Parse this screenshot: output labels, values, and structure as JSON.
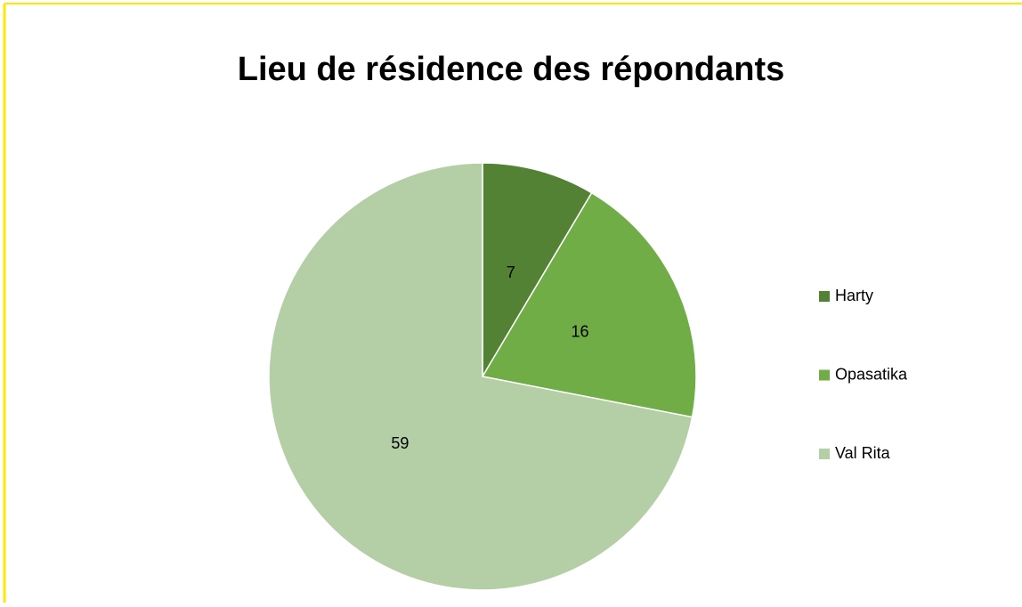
{
  "chart_data": {
    "type": "pie",
    "title": "Lieu de résidence des répondants",
    "categories": [
      "Harty",
      "Opasatika",
      "Val Rita"
    ],
    "values": [
      7,
      16,
      59
    ],
    "colors": [
      "#548235",
      "#70ad47",
      "#b4cea6"
    ],
    "legend": "right"
  }
}
